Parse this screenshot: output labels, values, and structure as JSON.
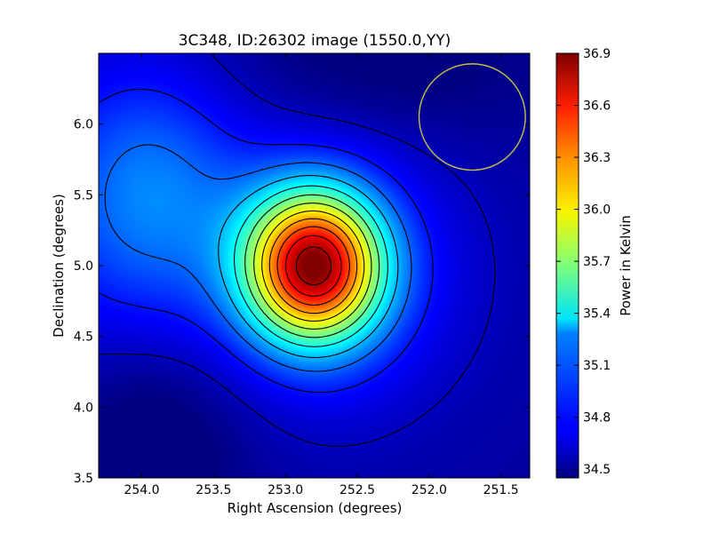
{
  "chart_data": {
    "type": "heatmap",
    "title": "3C348, ID:26302 image (1550.0,YY)",
    "xlabel": "Right Ascension (degrees)",
    "ylabel": "Declination (degrees)",
    "xlim": [
      254.3,
      251.3
    ],
    "ylim": [
      3.5,
      6.5
    ],
    "x_ticks": [
      "254.0",
      "253.5",
      "253.0",
      "252.5",
      "252.0",
      "251.5"
    ],
    "y_ticks": [
      "3.5",
      "4.0",
      "4.5",
      "5.0",
      "5.5",
      "6.0"
    ],
    "colorbar": {
      "label": "Power in Kelvin",
      "range": [
        34.45,
        36.9
      ],
      "ticks": [
        "34.5",
        "34.8",
        "35.1",
        "35.4",
        "35.7",
        "36.0",
        "36.3",
        "36.6",
        "36.9"
      ],
      "colormap": "jet"
    },
    "peak": {
      "ra": 252.8,
      "dec": 5.0,
      "value": 36.9
    },
    "beam_circle": {
      "ra": 251.7,
      "dec": 6.05,
      "radius_deg": 0.37,
      "color": "#c8c040"
    },
    "contours": true
  }
}
